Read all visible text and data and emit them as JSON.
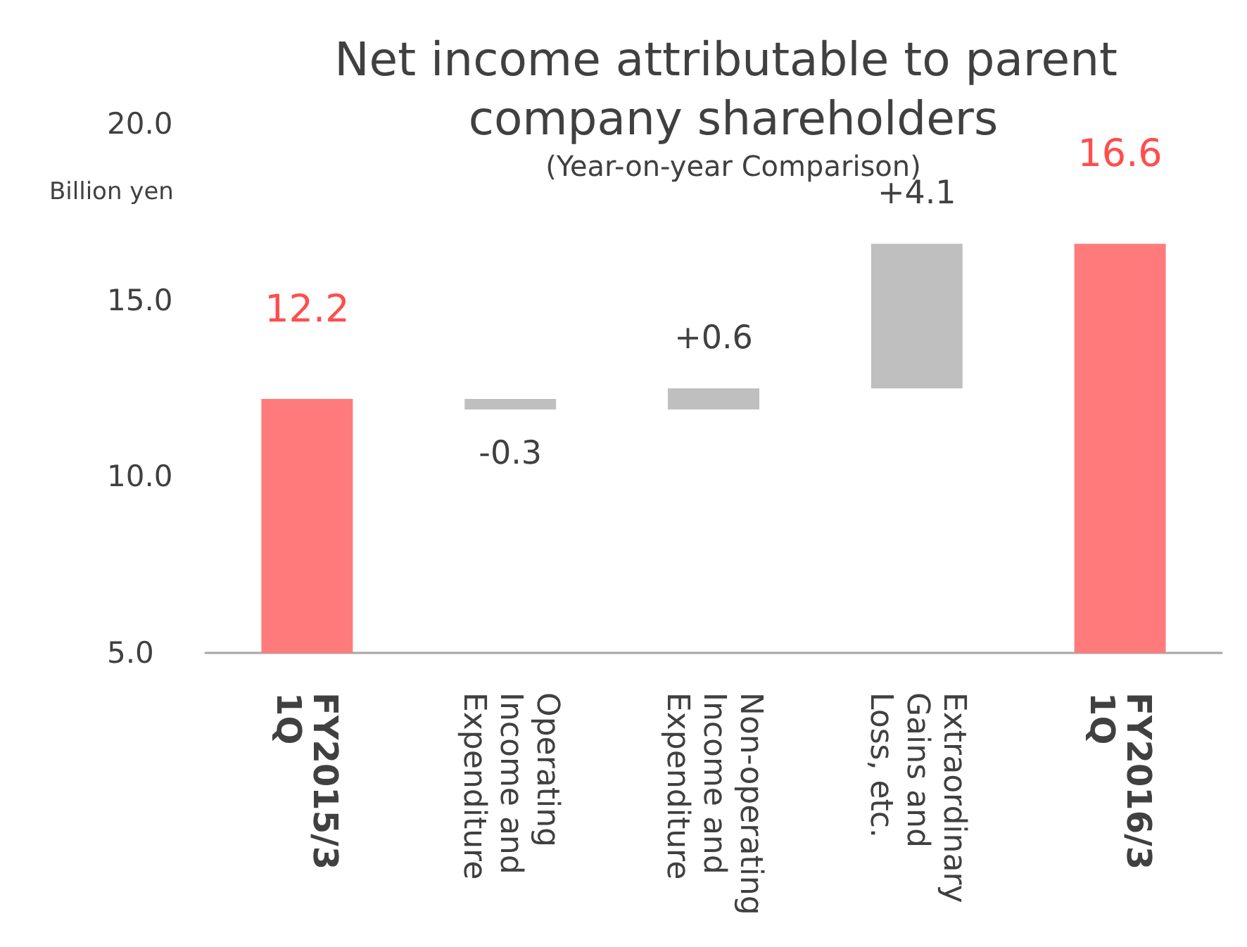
{
  "chart_data": {
    "type": "bar",
    "title": "Net income attributable to parent company shareholders",
    "subtitle": "(Year-on-year Comparison)",
    "ylabel": "Billion yen",
    "categories": [
      "FY2015/3 1Q",
      "Operating Income and Expenditure",
      "Non-operating Income and Expenditure",
      "Extraordinary Gains and Loss, etc.",
      "FY2016/3 1Q"
    ],
    "values": [
      12.2,
      -0.3,
      0.6,
      4.1,
      16.6
    ],
    "base": [
      null,
      12.2,
      11.9,
      12.5,
      null
    ],
    "colors": [
      "#ff7b7b",
      "#bfbfbf",
      "#bfbfbf",
      "#bfbfbf",
      "#ff7b7b"
    ],
    "value_labels": [
      "12.2",
      "-0.3",
      "+0.6",
      "+4.1",
      "16.6"
    ],
    "ylim": [
      5,
      20
    ],
    "yticks": [
      {
        "value": 5,
        "label": "5.0"
      },
      {
        "value": 10,
        "label": "10.0"
      },
      {
        "value": 15,
        "label": "15.0"
      },
      {
        "value": 20,
        "label": "20.0"
      }
    ]
  }
}
